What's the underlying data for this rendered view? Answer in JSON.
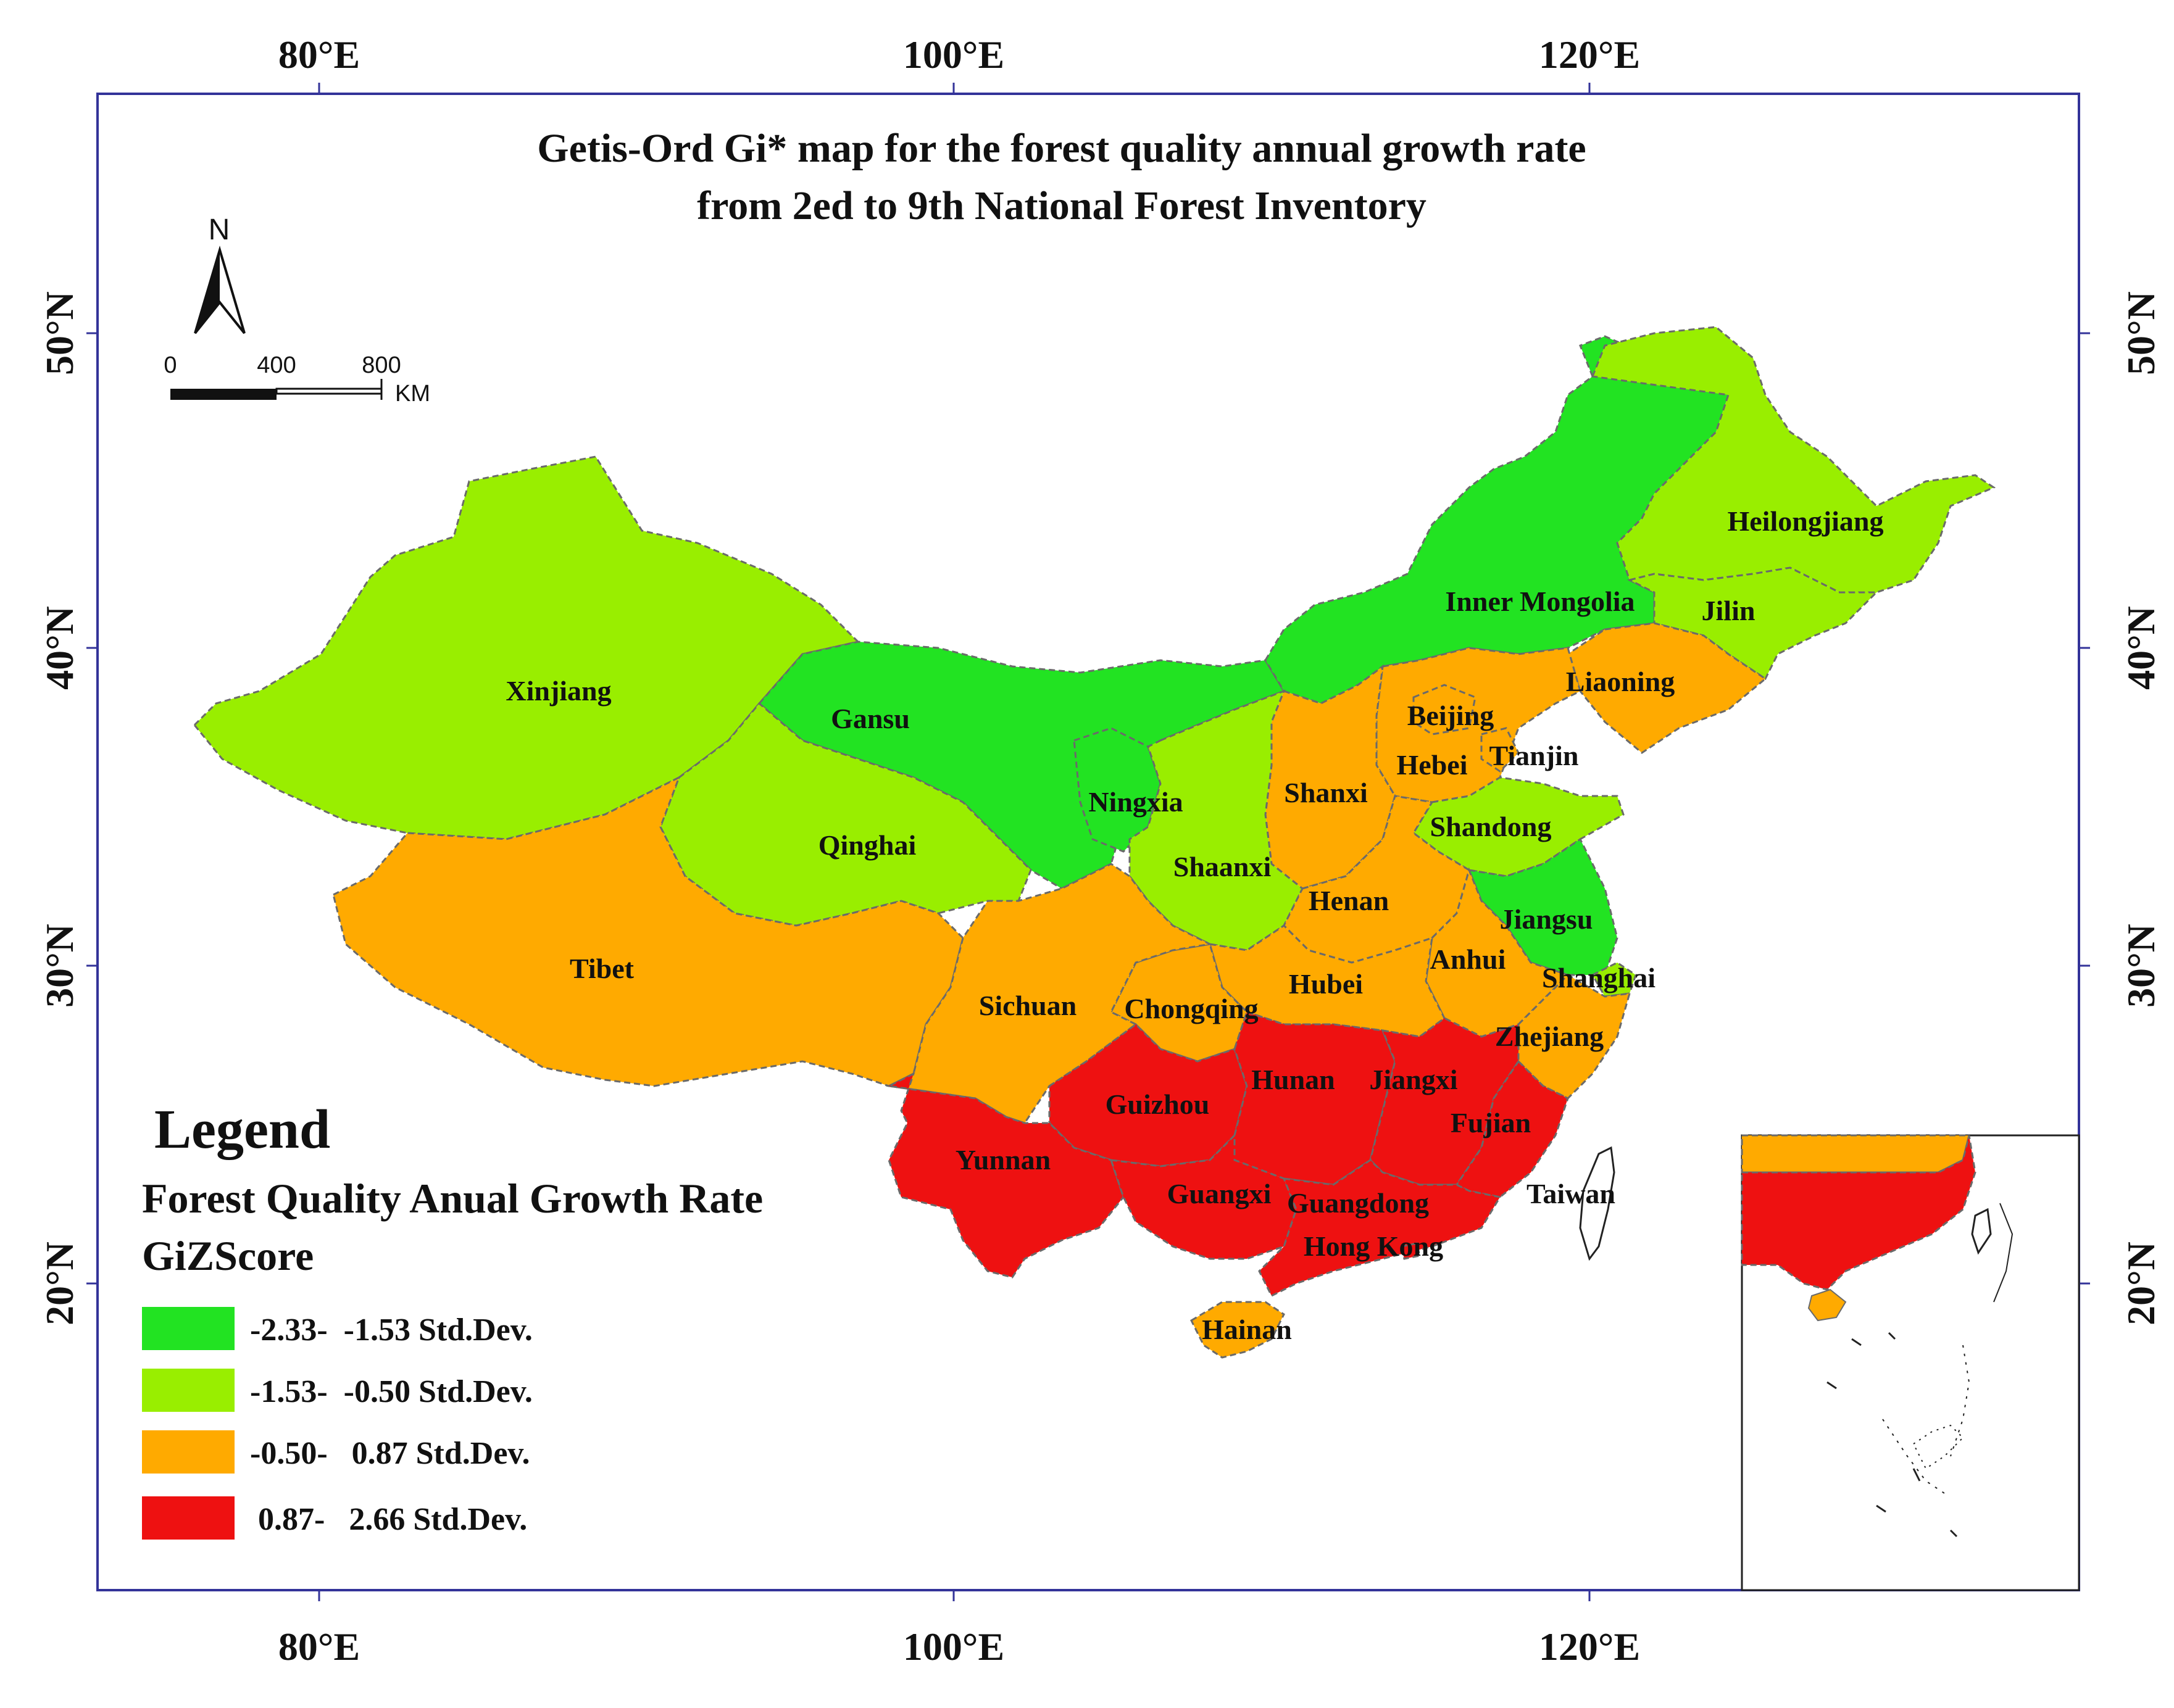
{
  "title": {
    "line1": "Getis-Ord Gi* map for the forest quality annual growth rate",
    "line2": "from 2ed to 9th National Forest Inventory"
  },
  "axes": {
    "top": [
      "80°E",
      "100°E",
      "120°E"
    ],
    "bottom": [
      "80°E",
      "100°E",
      "120°E"
    ],
    "left": [
      "50°N",
      "40°N",
      "30°N",
      "20°N"
    ],
    "right": [
      "50°N",
      "40°N",
      "30°N",
      "20°N"
    ]
  },
  "north_arrow": {
    "label": "N"
  },
  "scale_bar": {
    "ticks": [
      "0",
      "400",
      "800"
    ],
    "unit": "KM"
  },
  "legend": {
    "title": "Legend",
    "subtitle1": "Forest Quality Anual Growth Rate",
    "subtitle2": "GiZScore",
    "items": [
      {
        "label": "-2.33-  -1.53 Std.Dev.",
        "color": "#22e322"
      },
      {
        "label": "-1.53-  -0.50 Std.Dev.",
        "color": "#99ee00"
      },
      {
        "label": "-0.50-   0.87 Std.Dev.",
        "color": "#ffaa00"
      },
      {
        "label": " 0.87-   2.66 Std.Dev.",
        "color": "#ee1111"
      }
    ]
  },
  "provinces": [
    {
      "name": "Xinjiang",
      "class": 1
    },
    {
      "name": "Gansu",
      "class": 0
    },
    {
      "name": "Qinghai",
      "class": 1
    },
    {
      "name": "Tibet",
      "class": 2
    },
    {
      "name": "Inner Mongolia",
      "class": 0
    },
    {
      "name": "Heilongjiang",
      "class": 1
    },
    {
      "name": "Jilin",
      "class": 1
    },
    {
      "name": "Liaoning",
      "class": 2
    },
    {
      "name": "Beijing",
      "class": 2
    },
    {
      "name": "Tianjin",
      "class": 2
    },
    {
      "name": "Hebei",
      "class": 2
    },
    {
      "name": "Shanxi",
      "class": 2
    },
    {
      "name": "Ningxia",
      "class": 0
    },
    {
      "name": "Shaanxi",
      "class": 1
    },
    {
      "name": "Shandong",
      "class": 1
    },
    {
      "name": "Henan",
      "class": 2
    },
    {
      "name": "Jiangsu",
      "class": 0
    },
    {
      "name": "Anhui",
      "class": 2
    },
    {
      "name": "Shanghai",
      "class": 1
    },
    {
      "name": "Hubei",
      "class": 2
    },
    {
      "name": "Sichuan",
      "class": 2
    },
    {
      "name": "Chongqing",
      "class": 2
    },
    {
      "name": "Zhejiang",
      "class": 2
    },
    {
      "name": "Hunan",
      "class": 3
    },
    {
      "name": "Jiangxi",
      "class": 3
    },
    {
      "name": "Fujian",
      "class": 3
    },
    {
      "name": "Guizhou",
      "class": 3
    },
    {
      "name": "Yunnan",
      "class": 3
    },
    {
      "name": "Guangxi",
      "class": 3
    },
    {
      "name": "Guangdong",
      "class": 3
    },
    {
      "name": "Hong Kong",
      "class": 3
    },
    {
      "name": "Taiwan",
      "class": -1
    },
    {
      "name": "Hainan",
      "class": 2
    }
  ]
}
